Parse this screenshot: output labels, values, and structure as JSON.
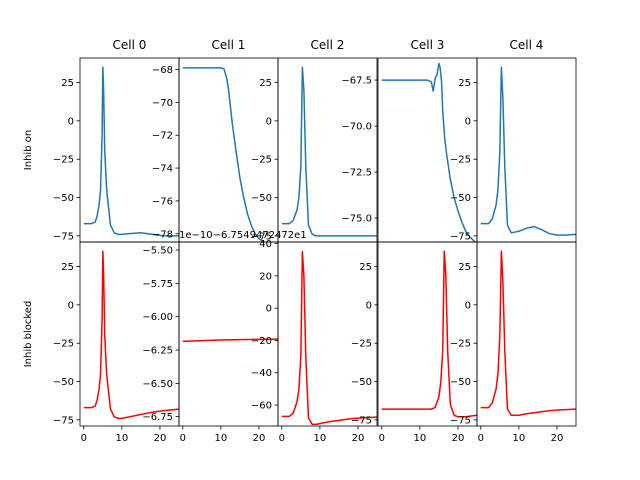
{
  "chart_data": {
    "type": "line",
    "column_titles": [
      "Cell 0",
      "Cell 1",
      "Cell 2",
      "Cell 3",
      "Cell 4"
    ],
    "row_labels": [
      "Inhib on",
      "Inhib blocked"
    ],
    "x_ticks": [
      0,
      10,
      20
    ],
    "xlim": [
      -1,
      25
    ],
    "colors": {
      "inhib_on": "#1f77b4",
      "inhib_blocked": "#ff0000"
    },
    "panels": [
      {
        "row": 0,
        "col": 0,
        "ylim": [
          -79,
          41
        ],
        "y_ticks": [
          "25",
          "0",
          "−25",
          "−50",
          "−75"
        ],
        "y_tick_values": [
          25,
          0,
          -25,
          -50,
          -75
        ],
        "x": [
          0,
          2,
          3,
          3.5,
          4,
          4.4,
          4.8,
          5.0,
          5.2,
          5.5,
          6,
          7,
          8,
          9,
          10,
          12,
          15,
          18,
          21,
          25
        ],
        "y": [
          -67,
          -67,
          -66,
          -62,
          -55,
          -45,
          -10,
          35,
          20,
          -20,
          -45,
          -68,
          -73,
          -74,
          -74,
          -73.5,
          -73,
          -74,
          -75,
          -75
        ]
      },
      {
        "row": 0,
        "col": 1,
        "ylim": [
          -78.5,
          -67.3
        ],
        "y_ticks": [
          "−68",
          "−70",
          "−72",
          "−74",
          "−76",
          "−78"
        ],
        "y_tick_values": [
          -68,
          -70,
          -72,
          -74,
          -76,
          -78
        ],
        "x": [
          0,
          5,
          10,
          10.8,
          11.5,
          12,
          13,
          14,
          15,
          16,
          17,
          18,
          19,
          20,
          22,
          25
        ],
        "y": [
          -67.9,
          -67.9,
          -67.9,
          -67.95,
          -68.5,
          -69.2,
          -71.3,
          -73.0,
          -74.6,
          -75.8,
          -76.8,
          -77.5,
          -78.0,
          -78.3,
          -78.6,
          -78.8
        ]
      },
      {
        "row": 0,
        "col": 2,
        "ylim": [
          -79,
          41
        ],
        "y_ticks": [
          "25",
          "0",
          "−25",
          "−50",
          "−75"
        ],
        "y_tick_values": [
          25,
          0,
          -25,
          -50,
          -75
        ],
        "x": [
          0,
          2,
          3,
          4,
          4.5,
          5,
          5.4,
          5.8,
          6.3,
          7,
          8,
          9,
          10,
          12,
          15,
          18,
          21,
          25
        ],
        "y": [
          -67,
          -67,
          -65,
          -58,
          -50,
          -30,
          35,
          20,
          -30,
          -68,
          -74,
          -75,
          -75,
          -75,
          -75,
          -75,
          -75,
          -75
        ]
      },
      {
        "row": 0,
        "col": 3,
        "ylim": [
          -76.3,
          -66.3
        ],
        "y_ticks": [
          "−67.5",
          "−70.0",
          "−72.5",
          "−75.0"
        ],
        "y_tick_values": [
          -67.5,
          -70.0,
          -72.5,
          -75.0
        ],
        "x": [
          0,
          5,
          10,
          12,
          13,
          13.5,
          14,
          14.5,
          15,
          15.3,
          15.7,
          16,
          16.5,
          17,
          18,
          19,
          20,
          21,
          22,
          23,
          24,
          25
        ],
        "y": [
          -67.5,
          -67.5,
          -67.5,
          -67.5,
          -67.6,
          -68.1,
          -67.4,
          -67.2,
          -66.6,
          -66.8,
          -67.6,
          -69.2,
          -70.6,
          -71.5,
          -72.9,
          -73.9,
          -74.6,
          -75.2,
          -75.7,
          -76.0,
          -76.2,
          -76.4
        ]
      },
      {
        "row": 0,
        "col": 4,
        "ylim": [
          -79,
          41
        ],
        "y_ticks": [
          "25",
          "0",
          "−25",
          "−50",
          "−75"
        ],
        "y_tick_values": [
          25,
          0,
          -25,
          -50,
          -75
        ],
        "x": [
          0,
          2,
          3,
          4,
          4.5,
          5,
          5.4,
          5.8,
          6.3,
          7,
          8,
          10,
          12,
          14,
          16,
          18,
          20,
          22,
          25
        ],
        "y": [
          -67,
          -67,
          -64,
          -55,
          -45,
          -20,
          35,
          15,
          -30,
          -68,
          -73,
          -72,
          -70,
          -69,
          -71,
          -73.5,
          -74.5,
          -74.5,
          -74
        ]
      },
      {
        "row": 1,
        "col": 0,
        "ylim": [
          -79,
          41
        ],
        "y_ticks": [
          "25",
          "0",
          "−25",
          "−50",
          "−75"
        ],
        "y_tick_values": [
          25,
          0,
          -25,
          -50,
          -75
        ],
        "x": [
          0,
          2,
          3,
          3.5,
          4,
          4.4,
          4.8,
          5.0,
          5.2,
          5.5,
          6,
          7,
          8,
          9,
          10,
          12,
          15,
          18,
          21,
          25
        ],
        "y": [
          -67,
          -67,
          -66,
          -62,
          -55,
          -45,
          -10,
          35,
          20,
          -20,
          -45,
          -68,
          -73,
          -74,
          -74,
          -73,
          -71.5,
          -70,
          -69,
          -68
        ]
      },
      {
        "row": 1,
        "col": 1,
        "ylim": [
          -6.82,
          -5.44
        ],
        "y_ticks": [
          "−5.50",
          "−5.75",
          "−6.00",
          "−6.25",
          "−6.50",
          "−6.75"
        ],
        "y_tick_values": [
          -5.5,
          -5.75,
          -6.0,
          -6.25,
          -6.5,
          -6.75
        ],
        "offset_text": "1e−10−6.7549472472e1",
        "x": [
          0,
          5,
          10,
          15,
          20,
          25
        ],
        "y": [
          -6.185,
          -6.18,
          -6.175,
          -6.172,
          -6.17,
          -6.168
        ]
      },
      {
        "row": 1,
        "col": 2,
        "ylim": [
          -73,
          41
        ],
        "y_ticks": [
          "40",
          "20",
          "0",
          "−20",
          "−40",
          "−60"
        ],
        "y_tick_values": [
          40,
          20,
          0,
          -20,
          -40,
          -60
        ],
        "x": [
          0,
          2,
          3,
          4,
          4.5,
          5,
          5.4,
          5.8,
          6.3,
          7,
          8,
          9,
          10,
          12,
          15,
          18,
          21,
          25
        ],
        "y": [
          -67,
          -67,
          -65,
          -58,
          -50,
          -30,
          35,
          20,
          -30,
          -68,
          -72,
          -72,
          -71.5,
          -70.5,
          -69.5,
          -68.5,
          -68,
          -67.5
        ]
      },
      {
        "row": 1,
        "col": 3,
        "ylim": [
          -79,
          41
        ],
        "y_ticks": [
          "25",
          "0",
          "−25",
          "−50",
          "−75"
        ],
        "y_tick_values": [
          25,
          0,
          -25,
          -50,
          -75
        ],
        "x": [
          0,
          5,
          10,
          13,
          14,
          15,
          15.5,
          16,
          16.4,
          16.8,
          17.3,
          18,
          19,
          20,
          22,
          25
        ],
        "y": [
          -68,
          -68,
          -68,
          -68,
          -67,
          -60,
          -50,
          -30,
          35,
          20,
          -30,
          -65,
          -72,
          -73,
          -73,
          -72
        ]
      },
      {
        "row": 1,
        "col": 4,
        "ylim": [
          -79,
          41
        ],
        "y_ticks": [
          "25",
          "0",
          "−25",
          "−50",
          "−75"
        ],
        "y_tick_values": [
          25,
          0,
          -25,
          -50,
          -75
        ],
        "x": [
          0,
          2,
          3,
          4,
          4.5,
          5,
          5.4,
          5.8,
          6.3,
          7,
          8,
          10,
          12,
          15,
          18,
          21,
          25
        ],
        "y": [
          -67,
          -67,
          -64,
          -55,
          -45,
          -20,
          35,
          15,
          -30,
          -68,
          -72,
          -72,
          -71,
          -70,
          -69,
          -68.5,
          -68
        ]
      }
    ]
  }
}
